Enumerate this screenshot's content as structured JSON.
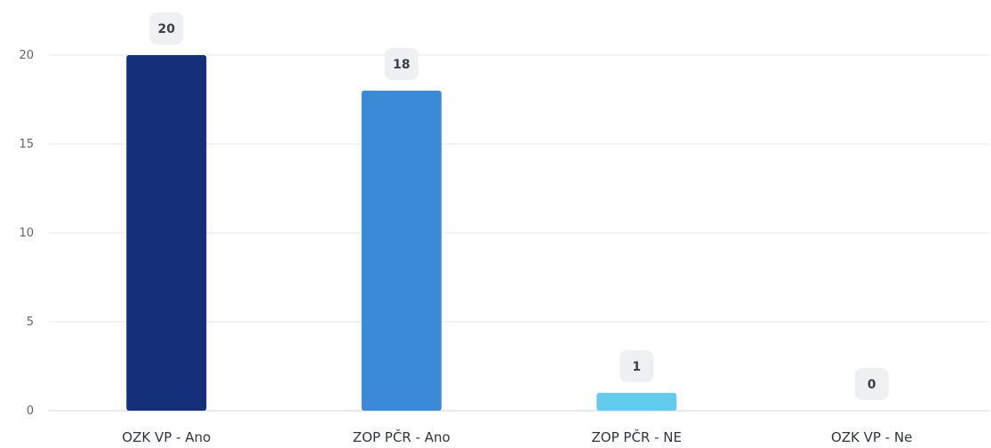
{
  "chart_data": {
    "type": "bar",
    "categories": [
      "OZK VP - Ano",
      "ZOP PČR - Ano",
      "ZOP PČR - NE",
      "OZK VP - Ne"
    ],
    "values": [
      20,
      18,
      1,
      0
    ],
    "bar_colors": [
      "#14307a",
      "#3a8ad8",
      "#63ccee",
      "#9fdcf2"
    ],
    "data_labels": [
      "20",
      "18",
      "1",
      "0"
    ],
    "y_ticks": [
      "0",
      "5",
      "10",
      "15",
      "20"
    ],
    "ylim": [
      0,
      20
    ],
    "grid": true,
    "title": "",
    "xlabel": "",
    "ylabel": ""
  }
}
